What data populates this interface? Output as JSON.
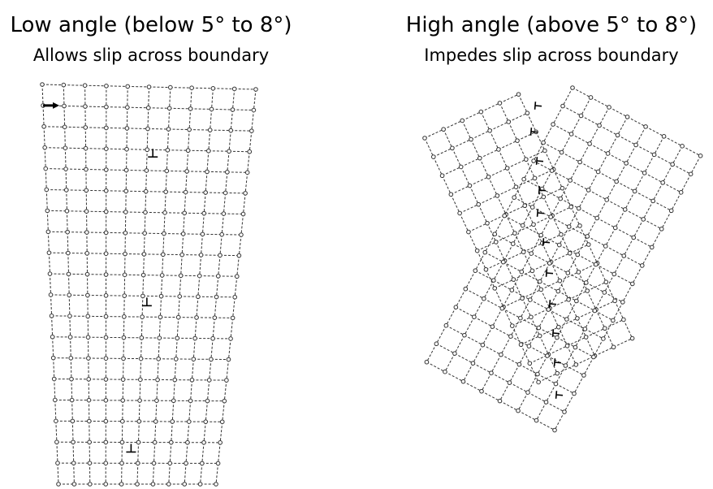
{
  "low_angle": {
    "title": "Low angle (below 5° to 8°)",
    "subtitle": "Allows slip across boundary",
    "dislocation_symbol": "⊥"
  },
  "high_angle": {
    "title": "High angle (above 5° to 8°)",
    "subtitle": "Impedes slip across boundary",
    "dislocation_symbol": "⊥"
  },
  "colors": {
    "ink": "#000000",
    "lattice": "#333333"
  }
}
